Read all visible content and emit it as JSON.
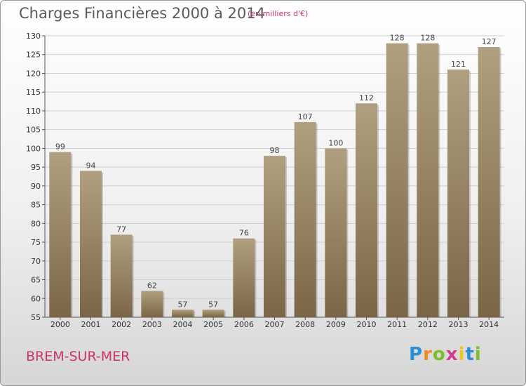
{
  "header": {
    "title": "Charges Financières 2000 à 2014",
    "subtitle": "(en milliers d'€)"
  },
  "footer": {
    "commune": "BREM-SUR-MER",
    "logo_letters": [
      "P",
      "r",
      "o",
      "x",
      "i",
      "t",
      "i"
    ],
    "logo_colors": [
      "#2a8fd6",
      "#f08a1c",
      "#7cbf2a",
      "#d63a8a",
      "#f0c419",
      "#2a8fd6",
      "#7cbf2a"
    ]
  },
  "colors": {
    "bar_light": "#b0a080",
    "bar_dark": "#7a6646",
    "grid": "#cfcfcf"
  },
  "chart_data": {
    "type": "bar",
    "title": "Charges Financières 2000 à 2014",
    "subtitle": "(en milliers d'€)",
    "categories": [
      "2000",
      "2001",
      "2002",
      "2003",
      "2004",
      "2005",
      "2006",
      "2007",
      "2008",
      "2009",
      "2010",
      "2011",
      "2012",
      "2013",
      "2014"
    ],
    "values": [
      99,
      94,
      77,
      62,
      57,
      57,
      76,
      98,
      107,
      100,
      112,
      128,
      128,
      121,
      127
    ],
    "ylim": [
      55,
      130
    ],
    "yticks": [
      55,
      60,
      65,
      70,
      75,
      80,
      85,
      90,
      95,
      100,
      105,
      110,
      115,
      120,
      125,
      130
    ],
    "grid": true,
    "legend": "none"
  }
}
